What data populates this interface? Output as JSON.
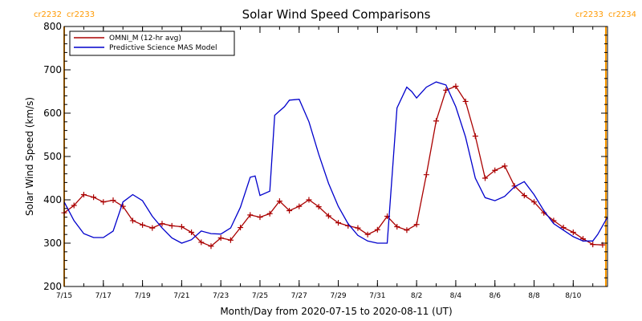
{
  "chart_data": {
    "type": "line",
    "title": "Solar Wind Speed Comparisons",
    "xlabel": "Month/Day from 2020-07-15 to 2020-08-11 (UT)",
    "ylabel": "Solar Wind Speed (km/s)",
    "xlim": [
      "2020-07-15T00:00",
      "2020-08-11T18:00"
    ],
    "ylim": [
      200,
      800
    ],
    "yticks": [
      200,
      300,
      400,
      500,
      600,
      700,
      800
    ],
    "xticks": [
      {
        "date": "2020-07-15",
        "label": "7/15"
      },
      {
        "date": "2020-07-17",
        "label": "7/17"
      },
      {
        "date": "2020-07-19",
        "label": "7/19"
      },
      {
        "date": "2020-07-21",
        "label": "7/21"
      },
      {
        "date": "2020-07-23",
        "label": "7/23"
      },
      {
        "date": "2020-07-25",
        "label": "7/25"
      },
      {
        "date": "2020-07-27",
        "label": "7/27"
      },
      {
        "date": "2020-07-29",
        "label": "7/29"
      },
      {
        "date": "2020-07-31",
        "label": "7/31"
      },
      {
        "date": "2020-08-02",
        "label": "8/2"
      },
      {
        "date": "2020-08-04",
        "label": "8/4"
      },
      {
        "date": "2020-08-06",
        "label": "8/6"
      },
      {
        "date": "2020-08-08",
        "label": "8/8"
      },
      {
        "date": "2020-08-10",
        "label": "8/10"
      }
    ],
    "legend_position": "top-left",
    "carrington_markers": [
      {
        "date": "2020-07-15T00:00",
        "left_label": "cr2232",
        "right_label": "cr2233",
        "color": "#ff9900"
      },
      {
        "date": "2020-08-11T16:00",
        "left_label": "cr2233",
        "right_label": "cr2234",
        "color": "#ff9900"
      }
    ],
    "series": [
      {
        "name": "OMNI_M (12-hr avg)",
        "color": "#aa0000",
        "marker": "plus",
        "x": [
          "2020-07-15T00:00",
          "2020-07-15T12:00",
          "2020-07-16T00:00",
          "2020-07-16T12:00",
          "2020-07-17T00:00",
          "2020-07-17T12:00",
          "2020-07-18T00:00",
          "2020-07-18T12:00",
          "2020-07-19T00:00",
          "2020-07-19T12:00",
          "2020-07-20T00:00",
          "2020-07-20T12:00",
          "2020-07-21T00:00",
          "2020-07-21T12:00",
          "2020-07-22T00:00",
          "2020-07-22T12:00",
          "2020-07-23T00:00",
          "2020-07-23T12:00",
          "2020-07-24T00:00",
          "2020-07-24T12:00",
          "2020-07-25T00:00",
          "2020-07-25T12:00",
          "2020-07-26T00:00",
          "2020-07-26T12:00",
          "2020-07-27T00:00",
          "2020-07-27T12:00",
          "2020-07-28T00:00",
          "2020-07-28T12:00",
          "2020-07-29T00:00",
          "2020-07-29T12:00",
          "2020-07-30T00:00",
          "2020-07-30T12:00",
          "2020-07-31T00:00",
          "2020-07-31T12:00",
          "2020-08-01T00:00",
          "2020-08-01T12:00",
          "2020-08-02T00:00",
          "2020-08-02T12:00",
          "2020-08-03T00:00",
          "2020-08-03T12:00",
          "2020-08-04T00:00",
          "2020-08-04T12:00",
          "2020-08-05T00:00",
          "2020-08-05T12:00",
          "2020-08-06T00:00",
          "2020-08-06T12:00",
          "2020-08-07T00:00",
          "2020-08-07T12:00",
          "2020-08-08T00:00",
          "2020-08-08T12:00",
          "2020-08-09T00:00",
          "2020-08-09T12:00",
          "2020-08-10T00:00",
          "2020-08-10T12:00",
          "2020-08-11T00:00",
          "2020-08-11T12:00"
        ],
        "values": [
          370,
          387,
          412,
          406,
          395,
          399,
          385,
          352,
          342,
          335,
          345,
          340,
          338,
          325,
          302,
          293,
          312,
          307,
          336,
          365,
          360,
          368,
          397,
          375,
          385,
          400,
          384,
          363,
          347,
          340,
          335,
          320,
          331,
          362,
          338,
          330,
          343,
          458,
          582,
          653,
          662,
          627,
          547,
          450,
          468,
          478,
          432,
          410,
          395,
          370,
          352,
          336,
          325,
          310,
          297,
          296
        ]
      },
      {
        "name": "Predictive Science MAS Model",
        "color": "#0000cc",
        "marker": "none",
        "x": [
          "2020-07-15T00:00",
          "2020-07-15T12:00",
          "2020-07-16T00:00",
          "2020-07-16T12:00",
          "2020-07-17T00:00",
          "2020-07-17T12:00",
          "2020-07-18T00:00",
          "2020-07-18T12:00",
          "2020-07-19T00:00",
          "2020-07-19T12:00",
          "2020-07-20T00:00",
          "2020-07-20T12:00",
          "2020-07-21T00:00",
          "2020-07-21T12:00",
          "2020-07-22T00:00",
          "2020-07-22T12:00",
          "2020-07-23T00:00",
          "2020-07-23T12:00",
          "2020-07-24T00:00",
          "2020-07-24T12:00",
          "2020-07-24T18:00",
          "2020-07-25T00:00",
          "2020-07-25T12:00",
          "2020-07-25T18:00",
          "2020-07-26T06:00",
          "2020-07-26T12:00",
          "2020-07-27T00:00",
          "2020-07-27T12:00",
          "2020-07-28T00:00",
          "2020-07-28T12:00",
          "2020-07-29T00:00",
          "2020-07-29T12:00",
          "2020-07-30T00:00",
          "2020-07-30T12:00",
          "2020-07-31T00:00",
          "2020-07-31T12:00",
          "2020-08-01T00:00",
          "2020-08-01T12:00",
          "2020-08-01T18:00",
          "2020-08-02T00:00",
          "2020-08-02T12:00",
          "2020-08-03T00:00",
          "2020-08-03T12:00",
          "2020-08-04T00:00",
          "2020-08-04T12:00",
          "2020-08-05T00:00",
          "2020-08-05T12:00",
          "2020-08-06T00:00",
          "2020-08-06T12:00",
          "2020-08-07T00:00",
          "2020-08-07T12:00",
          "2020-08-08T00:00",
          "2020-08-08T12:00",
          "2020-08-09T00:00",
          "2020-08-09T12:00",
          "2020-08-10T00:00",
          "2020-08-10T12:00",
          "2020-08-11T00:00",
          "2020-08-11T06:00",
          "2020-08-11T18:00"
        ],
        "values": [
          395,
          352,
          322,
          313,
          313,
          328,
          395,
          412,
          398,
          362,
          335,
          312,
          300,
          308,
          328,
          322,
          321,
          335,
          383,
          452,
          455,
          410,
          420,
          595,
          615,
          630,
          632,
          580,
          505,
          438,
          385,
          345,
          318,
          305,
          300,
          300,
          612,
          660,
          650,
          635,
          660,
          672,
          665,
          615,
          545,
          450,
          405,
          398,
          408,
          430,
          442,
          412,
          375,
          345,
          330,
          315,
          305,
          305,
          320,
          360
        ]
      }
    ]
  }
}
